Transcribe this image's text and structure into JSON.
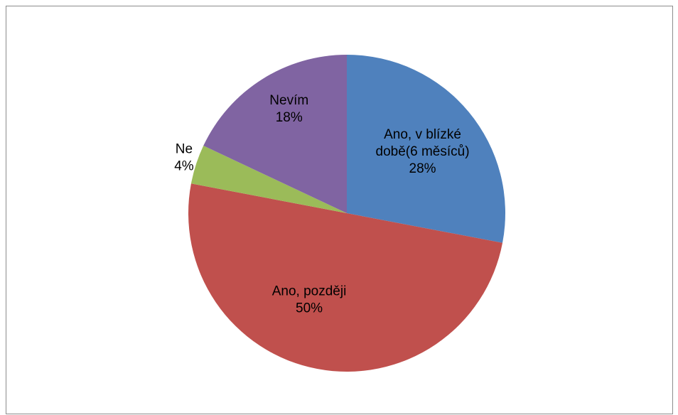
{
  "chart_data": {
    "type": "pie",
    "start_angle_deg": 0,
    "direction": "clockwise",
    "slices": [
      {
        "label_lines": [
          "Ano, v blízké",
          "době(6 měsíců)"
        ],
        "value": 28,
        "value_label": "28%",
        "color": "#4F81BD"
      },
      {
        "label_lines": [
          "Ano, později"
        ],
        "value": 50,
        "value_label": "50%",
        "color": "#C0504D"
      },
      {
        "label_lines": [
          "Ne"
        ],
        "value": 4,
        "value_label": "4%",
        "color": "#9BBB59"
      },
      {
        "label_lines": [
          "Nevím"
        ],
        "value": 18,
        "value_label": "18%",
        "color": "#8064A2"
      }
    ],
    "legend": "none",
    "data_labels": "category and percentage"
  }
}
